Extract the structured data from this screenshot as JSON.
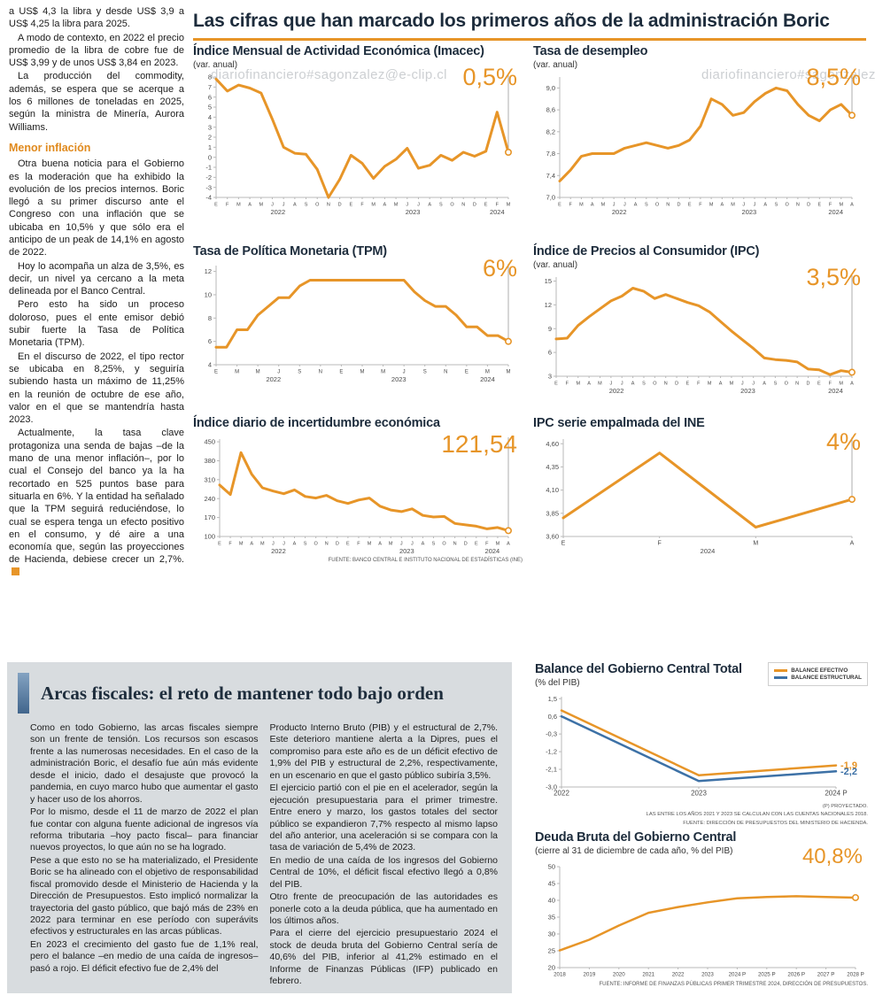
{
  "colors": {
    "accent_orange": "#E79528",
    "line_blue": "#3D71A6",
    "headline_navy": "#1D2C3C",
    "section_bg": "#D8DCDF"
  },
  "watermark": "diariofinanciero#sagonzalez@e-clip.cl",
  "headline": "Las cifras que han marcado los primeros años de la administración Boric",
  "left_article": {
    "p1": "a US$ 4,3 la libra y desde US$ 3,9 a US$ 4,25 la libra para 2025.",
    "p2": "A modo de contexto, en 2022 el precio promedio de la libra de cobre fue de US$ 3,99 y de unos US$ 3,84 en 2023.",
    "p3": "La producción del commodity, además, se espera que se acerque a los 6 millones de toneladas en 2025, según la ministra de Minería, Aurora Williams.",
    "subhead": "Menor inflación",
    "p4": "Otra buena noticia para el Gobierno es la moderación que ha exhibido la evolución de los precios internos. Boric llegó a su primer discurso ante el Congreso con una inflación que se ubicaba en 10,5% y que sólo era el anticipo de un peak de 14,1% en agosto de 2022.",
    "p5": "Hoy lo acompaña un alza de 3,5%, es decir, un nivel ya cercano a la meta delineada por el Banco Central.",
    "p6": "Pero esto ha sido un proceso doloroso, pues el ente emisor debió subir fuerte la Tasa de Política Monetaria (TPM).",
    "p7": "En el discurso de 2022, el tipo rector se ubicaba en 8,25%, y seguiría subiendo hasta un máximo de 11,25% en la reunión de octubre de ese año, valor en el que se mantendría hasta 2023.",
    "p8": "Actualmente, la tasa clave protagoniza una senda de bajas –de la mano de una menor inflación–, por lo cual el Consejo del banco ya la ha recortado en 525 puntos base para situarla en 6%. Y la entidad ha señalado que la TPM seguirá reduciéndose, lo cual se espera tenga un efecto positivo en el consumo, y dé aire a una economía que, según las proyecciones de Hacienda, debiese crecer un 2,7%."
  },
  "fiscal_article": {
    "title": "Arcas fiscales: el reto de mantener todo bajo orden",
    "col1": {
      "p1": "Como en todo Gobierno, las arcas fiscales siempre son un frente de tensión. Los recursos son escasos frente a las numerosas necesidades. En el caso de la administración Boric, el desafío fue aún más evidente desde el inicio, dado el desajuste que provocó la pandemia, en cuyo marco hubo que aumentar el gasto y hacer uso de los ahorros.",
      "p2": "Por lo mismo, desde el 11 de marzo de 2022 el plan fue contar con alguna fuente adicional de ingresos vía reforma tributaria –hoy pacto fiscal– para financiar nuevos proyectos, lo que aún no se ha logrado.",
      "p3": "Pese a que esto no se ha materializado, el Presidente Boric se ha alineado con el objetivo de responsabilidad fiscal promovido desde el Ministerio de Hacienda y la Dirección de Presupuestos. Esto implicó normalizar la trayectoria del gasto público, que bajó más de 23% en 2022 para terminar en ese período con superávits efectivos y estructurales en las arcas públicas.",
      "p4": "En 2023 el crecimiento del gasto fue de 1,1% real, pero el balance –en medio de una caída de ingresos– pasó a rojo. El déficit efectivo fue de 2,4% del"
    },
    "col2": {
      "p1": "Producto Interno Bruto (PIB) y el estructural de 2,7%. Este deterioro mantiene alerta a la Dipres, pues el compromiso para este año es de un déficit efectivo de 1,9% del PIB y estructural de 2,2%, respectivamente, en un escenario en que el gasto público subiría 3,5%.",
      "p2": "El ejercicio partió con el pie en el acelerador, según la ejecución presupuestaria para el primer trimestre. Entre enero y marzo, los gastos totales del sector público se expandieron 7,7% respecto al mismo lapso del año anterior, una aceleración si se compara con la tasa de variación de 5,4% de 2023.",
      "p3": "En medio de una caída de los ingresos del Gobierno Central de 10%, el déficit fiscal efectivo llegó a 0,8% del PIB.",
      "p4": "Otro frente de preocupación de las autoridades es ponerle coto a la deuda pública, que ha aumentado en los últimos años.",
      "p5": "Para el cierre del ejercicio presupuestario 2024 el stock de deuda bruta del Gobierno Central sería de 40,6% del PIB, inferior al 41,2% estimado en el Informe de Finanzas Públicas (IFP) publicado en febrero."
    }
  },
  "chart_data": [
    {
      "id": "imacec",
      "type": "line",
      "title": "Índice Mensual de Actividad Económica (Imacec)",
      "subtitle": "(var. anual)",
      "big_value": "0,5%",
      "y_tick_values": [
        8,
        7,
        6,
        5,
        4,
        3,
        2,
        1,
        0,
        -1,
        -2,
        -3,
        -4
      ],
      "y_tick_labels": [
        "8",
        "7",
        "6",
        "5",
        "4",
        "3",
        "2",
        "1",
        "0",
        "-1",
        "-2",
        "-3",
        "-4"
      ],
      "y_min": -4,
      "y_max": 8,
      "x_labels": [
        "E",
        "F",
        "M",
        "A",
        "M",
        "J",
        "J",
        "A",
        "S",
        "O",
        "N",
        "D",
        "E",
        "F",
        "M",
        "A",
        "M",
        "J",
        "J",
        "A",
        "S",
        "O",
        "N",
        "D",
        "E",
        "F",
        "M"
      ],
      "years": [
        {
          "label": "2022",
          "start": 0,
          "end": 11
        },
        {
          "label": "2023",
          "start": 12,
          "end": 23
        },
        {
          "label": "2024",
          "start": 24,
          "end": 26
        }
      ],
      "values": [
        7.8,
        6.6,
        7.2,
        6.9,
        6.4,
        3.8,
        1.0,
        0.4,
        0.3,
        -1.2,
        -4.0,
        -2.2,
        0.2,
        -0.6,
        -2.1,
        -0.9,
        -0.2,
        0.9,
        -1.1,
        -0.8,
        0.2,
        -0.3,
        0.5,
        0.1,
        0.6,
        4.5,
        0.5
      ]
    },
    {
      "id": "desempleo",
      "type": "line",
      "title": "Tasa de desempleo",
      "subtitle": "(var. anual)",
      "big_value": "8,5%",
      "y_tick_values": [
        9.0,
        8.6,
        8.2,
        7.8,
        7.4,
        7.0
      ],
      "y_tick_labels": [
        "9,0",
        "8,6",
        "8,2",
        "7,8",
        "7,4",
        "7,0"
      ],
      "y_min": 7.0,
      "y_max": 9.2,
      "x_labels": [
        "E",
        "F",
        "M",
        "A",
        "M",
        "J",
        "J",
        "A",
        "S",
        "O",
        "N",
        "D",
        "E",
        "F",
        "M",
        "A",
        "M",
        "J",
        "J",
        "A",
        "S",
        "O",
        "N",
        "D",
        "E",
        "F",
        "M",
        "A"
      ],
      "years": [
        {
          "label": "2022",
          "start": 0,
          "end": 11
        },
        {
          "label": "2023",
          "start": 12,
          "end": 23
        },
        {
          "label": "2024",
          "start": 24,
          "end": 27
        }
      ],
      "values": [
        7.3,
        7.5,
        7.75,
        7.8,
        7.8,
        7.8,
        7.9,
        7.95,
        8.0,
        7.95,
        7.9,
        7.95,
        8.05,
        8.3,
        8.8,
        8.7,
        8.5,
        8.55,
        8.75,
        8.9,
        9.0,
        8.95,
        8.7,
        8.5,
        8.4,
        8.6,
        8.7,
        8.5
      ]
    },
    {
      "id": "tpm",
      "type": "line",
      "title": "Tasa de Política Monetaria (TPM)",
      "big_value": "6%",
      "y_tick_values": [
        12,
        10,
        8,
        6,
        4
      ],
      "y_tick_labels": [
        "12",
        "10",
        "8",
        "6",
        "4"
      ],
      "y_min": 4,
      "y_max": 12.5,
      "x_labels": [
        "E",
        "",
        "M",
        "",
        "M",
        "",
        "J",
        "",
        "S",
        "",
        "N",
        "",
        "E",
        "",
        "M",
        "",
        "M",
        "",
        "J",
        "",
        "S",
        "",
        "N",
        "",
        "E",
        "",
        "M",
        "",
        "M"
      ],
      "years": [
        {
          "label": "2022",
          "start": 0,
          "end": 11
        },
        {
          "label": "2023",
          "start": 12,
          "end": 23
        },
        {
          "label": "2024",
          "start": 24,
          "end": 28
        }
      ],
      "values": [
        5.5,
        5.5,
        7.0,
        7.0,
        8.25,
        9.0,
        9.75,
        9.75,
        10.75,
        11.25,
        11.25,
        11.25,
        11.25,
        11.25,
        11.25,
        11.25,
        11.25,
        11.25,
        11.25,
        10.25,
        9.5,
        9.0,
        9.0,
        8.25,
        7.25,
        7.25,
        6.5,
        6.5,
        6.0
      ]
    },
    {
      "id": "ipc",
      "type": "line",
      "title": "Índice de Precios al Consumidor (IPC)",
      "subtitle": "(var. anual)",
      "big_value": "3,5%",
      "y_tick_values": [
        15,
        12,
        9,
        6,
        3
      ],
      "y_tick_labels": [
        "15",
        "12",
        "9",
        "6",
        "3"
      ],
      "y_min": 3,
      "y_max": 15.5,
      "x_labels": [
        "E",
        "F",
        "M",
        "A",
        "M",
        "J",
        "J",
        "A",
        "S",
        "O",
        "N",
        "D",
        "E",
        "F",
        "M",
        "A",
        "M",
        "J",
        "J",
        "A",
        "S",
        "O",
        "N",
        "D",
        "E",
        "F",
        "M",
        "A"
      ],
      "years": [
        {
          "label": "2022",
          "start": 0,
          "end": 11
        },
        {
          "label": "2023",
          "start": 12,
          "end": 23
        },
        {
          "label": "2024",
          "start": 24,
          "end": 27
        }
      ],
      "values": [
        7.7,
        7.8,
        9.4,
        10.5,
        11.5,
        12.5,
        13.1,
        14.1,
        13.7,
        12.8,
        13.3,
        12.8,
        12.3,
        11.9,
        11.1,
        9.9,
        8.7,
        7.6,
        6.5,
        5.3,
        5.1,
        5.0,
        4.8,
        3.9,
        3.8,
        3.2,
        3.7,
        3.5
      ]
    },
    {
      "id": "incertidumbre",
      "type": "line",
      "title": "Índice diario de incertidumbre económica",
      "big_value": "121,54",
      "y_tick_values": [
        450,
        380,
        310,
        240,
        170,
        100
      ],
      "y_tick_labels": [
        "450",
        "380",
        "310",
        "240",
        "170",
        "100"
      ],
      "y_min": 100,
      "y_max": 460,
      "x_labels": [
        "E",
        "F",
        "M",
        "A",
        "M",
        "J",
        "J",
        "A",
        "S",
        "O",
        "N",
        "D",
        "E",
        "F",
        "M",
        "A",
        "M",
        "J",
        "J",
        "A",
        "S",
        "O",
        "N",
        "D",
        "E",
        "F",
        "M",
        "A"
      ],
      "years": [
        {
          "label": "2022",
          "start": 0,
          "end": 11
        },
        {
          "label": "2023",
          "start": 12,
          "end": 23
        },
        {
          "label": "2024",
          "start": 24,
          "end": 27
        }
      ],
      "values": [
        290,
        255,
        410,
        330,
        280,
        268,
        258,
        272,
        248,
        242,
        252,
        232,
        222,
        235,
        242,
        212,
        198,
        192,
        202,
        178,
        172,
        174,
        148,
        143,
        138,
        128,
        133,
        121.54
      ],
      "source": "FUENTE: BANCO CENTRAL E INSTITUTO NACIONAL DE ESTADÍSTICAS (INE)"
    },
    {
      "id": "ipc_empalmada",
      "type": "line",
      "title": "IPC serie empalmada del INE",
      "big_value": "4%",
      "y_tick_values": [
        4.6,
        4.35,
        4.1,
        3.85,
        3.6
      ],
      "y_tick_labels": [
        "4,60",
        "4,35",
        "4,10",
        "3,85",
        "3,60"
      ],
      "y_min": 3.6,
      "y_max": 4.65,
      "x_labels": [
        "E",
        "F",
        "M",
        "A"
      ],
      "years": [
        {
          "label": "2024",
          "start": 0,
          "end": 3
        }
      ],
      "values": [
        3.8,
        4.5,
        3.7,
        4.0
      ]
    },
    {
      "id": "balance",
      "type": "line",
      "title": "Balance del Gobierno Central Total",
      "subtitle": "(% del PIB)",
      "legend": [
        "BALANCE EFECTIVO",
        "BALANCE ESTRUCTURAL"
      ],
      "y_tick_values": [
        1.5,
        0.6,
        -0.3,
        -1.2,
        -2.1,
        -3.0
      ],
      "y_tick_labels": [
        "1,5",
        "0,6",
        "-0,3",
        "-1,2",
        "-2,1",
        "-3,0"
      ],
      "y_min": -3.0,
      "y_max": 1.6,
      "x_labels": [
        "2022",
        "2023",
        "2024 P"
      ],
      "series": [
        {
          "name": "BALANCE EFECTIVO",
          "color": "accent_orange",
          "values": [
            0.9,
            -2.4,
            -1.9
          ],
          "end_label": "-1,9"
        },
        {
          "name": "BALANCE ESTRUCTURAL",
          "color": "line_blue",
          "values": [
            0.6,
            -2.7,
            -2.2
          ],
          "end_label": "-2,2"
        }
      ],
      "footnotes": [
        "(P) PROYECTADO.",
        "LAS ENTRE LOS AÑOS 2021 Y 2023 SE CALCULAN CON LAS CUENTAS NACIONALES 2018.",
        "FUENTE: DIRECCIÓN DE PRESUPUESTOS DEL MINISTERIO DE HACIENDA."
      ]
    },
    {
      "id": "deuda",
      "type": "line",
      "title": "Deuda Bruta del Gobierno Central",
      "subtitle": "(cierre al 31 de diciembre de cada año, % del PIB)",
      "big_value": "40,8%",
      "y_tick_values": [
        50,
        45,
        40,
        35,
        30,
        25,
        20
      ],
      "y_tick_labels": [
        "50",
        "45",
        "40",
        "35",
        "30",
        "25",
        "20"
      ],
      "y_min": 20,
      "y_max": 50,
      "x_labels": [
        "2018",
        "2019",
        "2020",
        "2021",
        "2022",
        "2023",
        "2024 P",
        "2025 P",
        "2026 P",
        "2027 P",
        "2028 P"
      ],
      "values": [
        25.1,
        28.3,
        32.5,
        36.3,
        38.0,
        39.4,
        40.6,
        41.0,
        41.2,
        41.0,
        40.8
      ],
      "source": "FUENTE: INFORME DE FINANZAS PÚBLICAS PRIMER TRIMESTRE 2024, DIRECCIÓN DE PRESUPUESTOS."
    }
  ]
}
